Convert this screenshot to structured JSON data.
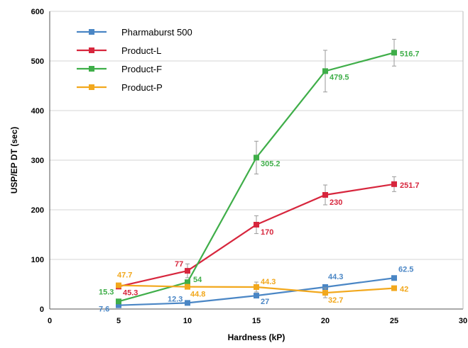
{
  "chart_data": {
    "type": "line",
    "xlabel": "Hardness (kP)",
    "ylabel": "USP/EP DT (sec)",
    "xlim": [
      0,
      30
    ],
    "ylim": [
      0,
      600
    ],
    "xticks": [
      0,
      5,
      10,
      15,
      20,
      25,
      30
    ],
    "yticks": [
      0,
      100,
      200,
      300,
      400,
      500,
      600
    ],
    "grid": "horizontal",
    "legend_position": "top-left",
    "x": [
      5,
      10,
      15,
      20,
      25
    ],
    "series": [
      {
        "name": "Pharmaburst 500",
        "color": "#4a86c5",
        "values": [
          7.6,
          12.3,
          27,
          44.3,
          62.5
        ],
        "labels": [
          "7.6",
          "12.3",
          "27",
          "44.3",
          "62.5"
        ],
        "error": [
          0,
          0,
          0,
          0,
          0
        ]
      },
      {
        "name": "Product-L",
        "color": "#d7263d",
        "values": [
          45.3,
          77,
          170,
          230,
          251.7
        ],
        "labels": [
          "45.3",
          "77",
          "170",
          "230",
          "251.7"
        ],
        "error": [
          0,
          14,
          18,
          20,
          15
        ]
      },
      {
        "name": "Product-F",
        "color": "#3fae49",
        "values": [
          15.3,
          54,
          305.2,
          479.5,
          516.7
        ],
        "labels": [
          "15.3",
          "54",
          "305.2",
          "479.5",
          "516.7"
        ],
        "error": [
          0,
          0,
          33,
          42,
          27
        ]
      },
      {
        "name": "Product-P",
        "color": "#f2a81d",
        "values": [
          47.7,
          44.8,
          44.3,
          32.7,
          42
        ],
        "labels": [
          "47.7",
          "44.8",
          "44.3",
          "32.7",
          "42"
        ],
        "error": [
          0,
          0,
          10,
          10,
          0
        ]
      }
    ]
  }
}
